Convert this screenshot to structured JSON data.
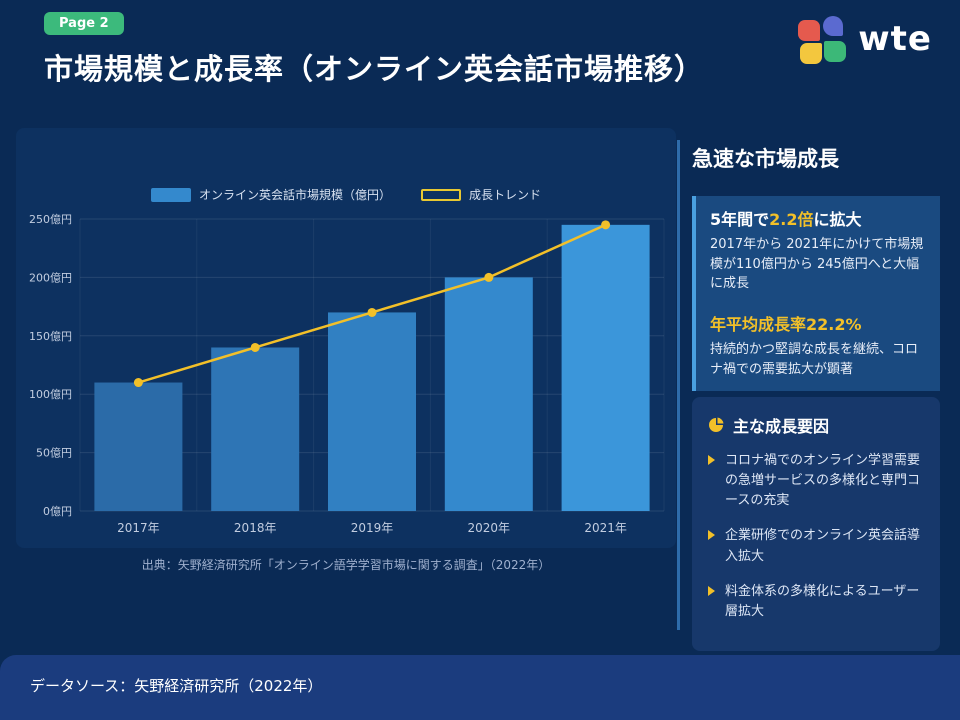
{
  "page": {
    "badge": "Page 2",
    "title": "市場規模と成長率（オンライン英会話市場推移）"
  },
  "logo": {
    "text": "wte",
    "colors": {
      "top_left": "#e55a4e",
      "top_right": "#5b6ad0",
      "bottom_left": "#f3c73e",
      "bottom_right": "#3cb878"
    }
  },
  "chart_data": {
    "type": "bar",
    "categories": [
      "2017年",
      "2018年",
      "2019年",
      "2020年",
      "2021年"
    ],
    "series": [
      {
        "name": "オンライン英会話市場規模（億円）",
        "type": "bar",
        "values": [
          110,
          140,
          170,
          200,
          245
        ],
        "bar_colors": [
          "#2b6ba8",
          "#2e75b5",
          "#3180c2",
          "#3489cd",
          "#3b96da"
        ],
        "legend_color": "#3489cd"
      },
      {
        "name": "成長トレンド",
        "type": "line",
        "values": [
          110,
          140,
          170,
          200,
          245
        ],
        "color": "#f2c029"
      }
    ],
    "ylim": [
      0,
      250
    ],
    "y_ticks": [
      0,
      50,
      100,
      150,
      200,
      250
    ],
    "y_tick_suffix": "億円",
    "xlabel": "",
    "ylabel": "",
    "grid": true,
    "legend_position": "top",
    "source": "出典：矢野経済研究所「オンライン語学学習市場に関する調査」（2022年）"
  },
  "sidebar": {
    "heading": "急速な市場成長",
    "cards": [
      {
        "title_prefix": "5年間で",
        "title_highlight": "2.2倍",
        "title_suffix": "に拡大",
        "body": "2017年から 2021年にかけて市場規模が110億円から 245億円へと大幅に成長"
      },
      {
        "title": "年平均成長率22.2%",
        "body": "持続的かつ堅調な成長を継続、コロナ禍での需要拡大が顕著"
      }
    ],
    "factors": {
      "heading": "主な成長要因",
      "items": [
        "コロナ禍でのオンライン学習需要の急増サービスの多様化と専門コースの充実",
        "企業研修でのオンライン英会話導入拡大",
        "料金体系の多様化によるユーザー層拡大"
      ]
    }
  },
  "footer": {
    "text": "データソース：矢野経済研究所（2022年）"
  },
  "theme": {
    "background": "#0a2a55",
    "panel": "#0d3160",
    "card": "#1a4a80",
    "factors_card": "#17386b",
    "accent_yellow": "#f2c029",
    "accent_green": "#3cba7c",
    "card_border": "#4aa0e0",
    "footer_bar": "#1b3c7e"
  }
}
